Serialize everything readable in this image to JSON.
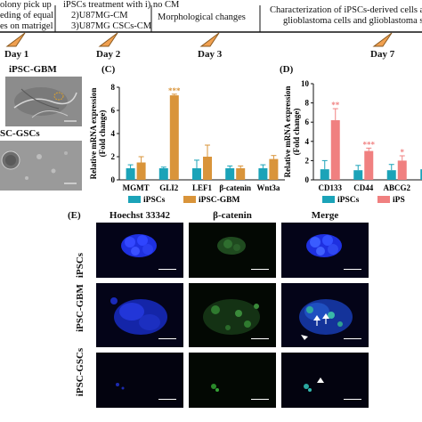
{
  "timeline": {
    "step1_lines": [
      "olony pick up",
      "eding of equal",
      "es on matrigel"
    ],
    "step2_lines": [
      "iPSCs treatment with i) no CM",
      "2)U87MG-CM",
      "3)U87MG CSCs-CM"
    ],
    "step3_line": "Morphological changes",
    "step4_lines": [
      "Characterization of iPSCs-derived cells a",
      "glioblastoma cells and glioblastoma ste"
    ],
    "days": [
      "Day 1",
      "Day 2",
      "Day 3",
      "Day 7"
    ],
    "triangle_color": "#f0a050"
  },
  "panel_b": {
    "label_gbm": "iPSC-GBM",
    "label_gscs": "SC-GSCs"
  },
  "panel_c": {
    "letter": "(C)",
    "legend": [
      "iPSCs",
      "iPSC-GBM"
    ]
  },
  "panel_d": {
    "letter": "(D)",
    "legend": [
      "iPSCs",
      "iPS"
    ]
  },
  "panel_e": {
    "letter": "(E)",
    "columns": [
      "Hoechst 33342",
      "β-catenin",
      "Merge"
    ],
    "rows": [
      "iPSCs",
      "iPSC-GBM",
      "iPSC-GSCs"
    ]
  },
  "chart_data": [
    {
      "type": "bar",
      "ylabel": "Relative mRNA expression (Fold change)",
      "ylim": [
        0,
        8
      ],
      "yticks": [
        0,
        2,
        4,
        6,
        8
      ],
      "categories": [
        "MGMT",
        "GLI2",
        "LEF1",
        "β-catenin",
        "Wnt3a"
      ],
      "series": [
        {
          "name": "iPSCs",
          "color": "#1ba3b8",
          "values": [
            1.0,
            1.0,
            1.0,
            1.0,
            1.0
          ],
          "errors": [
            0.3,
            0.1,
            0.7,
            0.2,
            0.3
          ]
        },
        {
          "name": "iPSC-GBM",
          "color": "#d9943a",
          "values": [
            1.5,
            7.3,
            2.0,
            1.0,
            1.8
          ],
          "errors": [
            0.5,
            0.1,
            1.0,
            0.2,
            0.3
          ]
        }
      ],
      "annotations": [
        {
          "category": "GLI2",
          "series": "iPSC-GBM",
          "text": "***"
        }
      ]
    },
    {
      "type": "bar",
      "ylabel": "Relative mRNA expression (Fold change)",
      "ylim": [
        0,
        10
      ],
      "yticks": [
        0,
        2,
        4,
        6,
        8,
        10
      ],
      "categories": [
        "CD133",
        "CD44",
        "ABCG2",
        "AB"
      ],
      "series": [
        {
          "name": "iPSCs",
          "color": "#1ba3b8",
          "values": [
            1.1,
            1.0,
            1.0,
            1.1
          ],
          "errors": [
            0.9,
            0.5,
            0.6,
            0.5
          ]
        },
        {
          "name": "iPS",
          "color": "#f08080",
          "values": [
            6.2,
            3.0,
            2.0,
            7.5
          ],
          "errors": [
            1.2,
            0.3,
            0.5,
            0.0
          ]
        }
      ],
      "annotations": [
        {
          "category": "CD133",
          "series": "iPS",
          "text": "**"
        },
        {
          "category": "CD44",
          "series": "iPS",
          "text": "***"
        },
        {
          "category": "ABCG2",
          "series": "iPS",
          "text": "*"
        }
      ]
    }
  ]
}
